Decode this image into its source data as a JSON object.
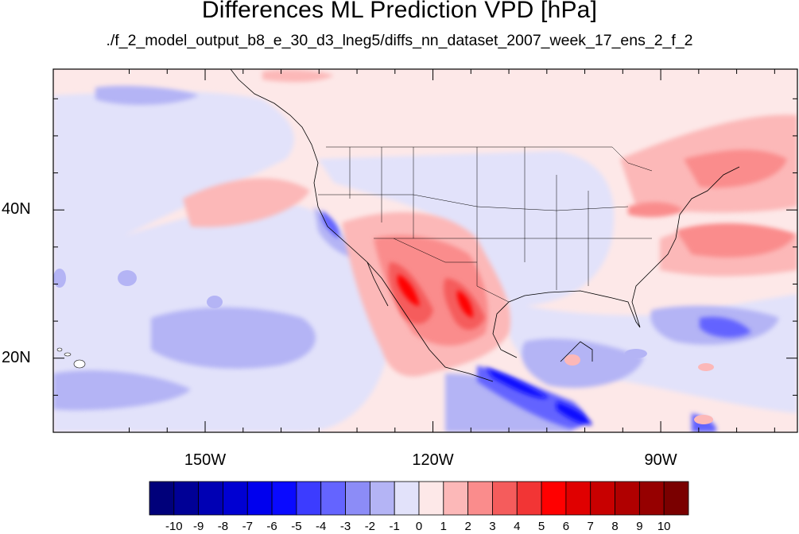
{
  "title": "Differences ML Prediction VPD [hPa]",
  "subtitle": "./f_2_model_output_b8_e_30_d3_lneg5/diffs_nn_dataset_2007_week_17_ens_2_f_2",
  "map": {
    "lon_range": [
      -170,
      -72
    ],
    "lat_range": [
      10,
      59
    ],
    "lon_ticks": [
      {
        "value": -150,
        "label": "150W"
      },
      {
        "value": -120,
        "label": "120W"
      },
      {
        "value": -90,
        "label": "90W"
      }
    ],
    "lat_ticks": [
      {
        "value": 40,
        "label": "40N"
      },
      {
        "value": 20,
        "label": "20N"
      }
    ]
  },
  "colorbar": {
    "levels": [
      "-10",
      "-9",
      "-8",
      "-7",
      "-6",
      "-5",
      "-4",
      "-3",
      "-2",
      "-1",
      "0",
      "1",
      "2",
      "3",
      "4",
      "5",
      "6",
      "7",
      "8",
      "9",
      "10"
    ],
    "colors": [
      "#00007a",
      "#000096",
      "#0000b4",
      "#0000d2",
      "#0000ee",
      "#0a0aff",
      "#3c3cff",
      "#6464ff",
      "#8c8cf7",
      "#b4b4f5",
      "#e2e2fa",
      "#fde8e8",
      "#fcb8b8",
      "#fa8c8c",
      "#f55c5c",
      "#f23535",
      "#ff0000",
      "#e00000",
      "#c80000",
      "#b00000",
      "#960000",
      "#7a0000"
    ]
  }
}
